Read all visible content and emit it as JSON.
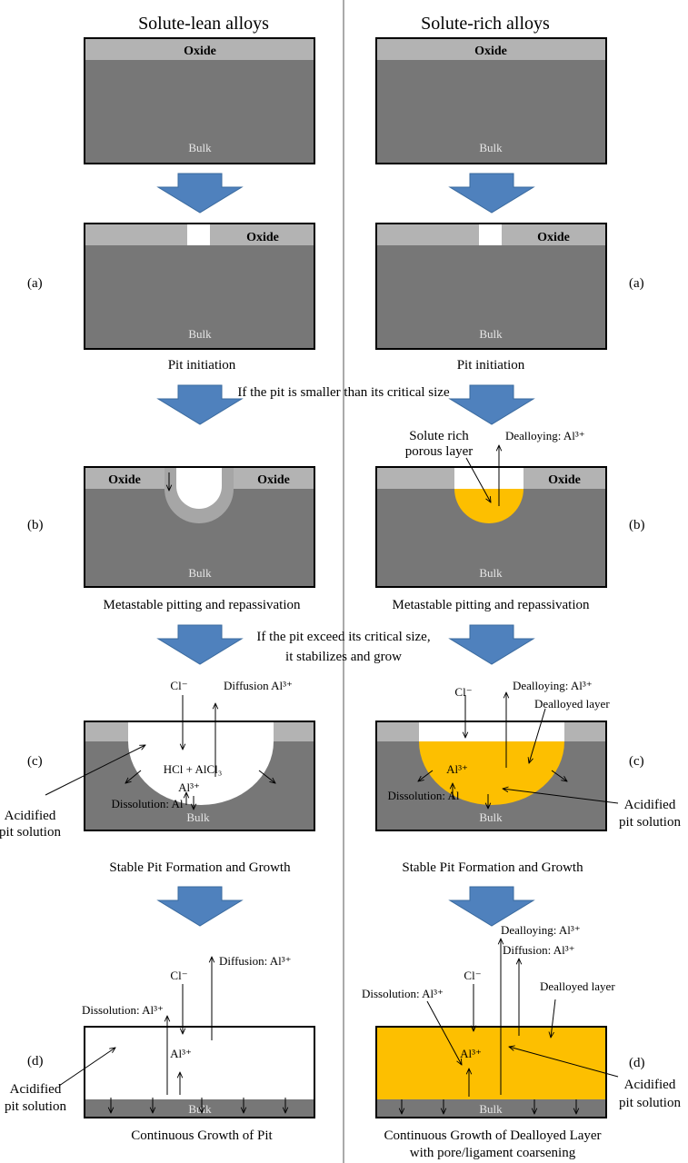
{
  "headers": {
    "left": "Solute-lean alloys",
    "right": "Solute-rich alloys"
  },
  "common": {
    "oxide": "Oxide",
    "bulk": "Bulk",
    "dealloyed_layer": "Dealloyed layer",
    "acidified_1": "Acidified",
    "acidified_2": "pit solution"
  },
  "stage_labels": {
    "a": "(a)",
    "b": "(b)",
    "c": "(c)",
    "d": "(d)"
  },
  "captions": {
    "a": "Pit initiation",
    "b": "Metastable pitting and repassivation",
    "c": "Stable Pit Formation and Growth",
    "d_left": "Continuous Growth of Pit",
    "d_right_1": "Continuous Growth of Dealloyed Layer",
    "d_right_2": "with pore/ligament coarsening"
  },
  "transitions": {
    "small": "If the pit is smaller than its critical size",
    "exceed_1": "If the pit exceed its critical size,",
    "exceed_2": "it stabilizes and grow"
  },
  "annotations": {
    "solute_rich_1": "Solute rich",
    "solute_rich_2": "porous layer",
    "dealloying": "Dealloying: Al³⁺",
    "diffusion_c": "Diffusion Al³⁺",
    "diffusion_d": "Diffusion: Al³⁺",
    "cl": "Cl⁻",
    "hcl": "HCl + AlCl₃",
    "al3": "Al³⁺",
    "dissolution_al": "Dissolution: Al",
    "dissolution_al3": "Dissolution: Al³⁺"
  },
  "colors": {
    "bulk": "#777777",
    "oxide": "#b3b3b3",
    "dealloyed": "#fdbf00",
    "arrow": "#4f81bd",
    "repassivated": "#a6a6a6"
  }
}
